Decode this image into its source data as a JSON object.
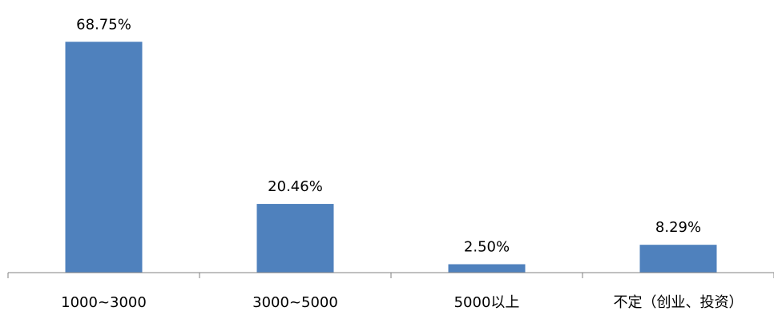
{
  "chart_data": {
    "type": "bar",
    "categories": [
      "1000~3000",
      "3000~5000",
      "5000以上",
      "不定（创业、投资）"
    ],
    "values": [
      68.75,
      20.46,
      2.5,
      8.29
    ],
    "data_labels": [
      "68.75%",
      "20.46%",
      "2.50%",
      "8.29%"
    ],
    "title": "",
    "xlabel": "",
    "ylabel": "",
    "ylim": [
      0,
      80
    ],
    "grid": false,
    "legend": "none",
    "bar_color": "#4F81BD"
  }
}
